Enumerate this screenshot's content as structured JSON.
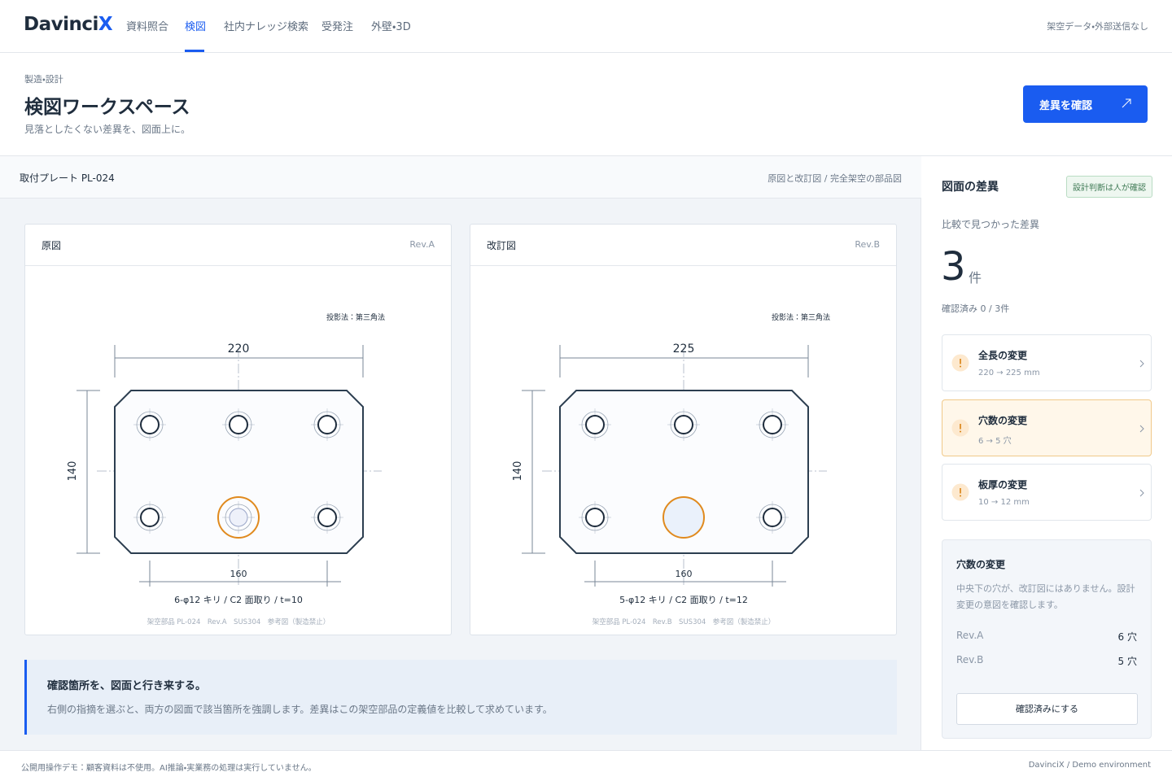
{
  "header": {
    "logo": "Davinci",
    "logo_accent": "X",
    "nav": [
      "資料照合",
      "検図",
      "社内ナレッジ検索",
      "受発注",
      "外壁・3D"
    ],
    "notice": "架空データ・外部送信なし"
  },
  "page": {
    "breadcrumb": "製造・設計",
    "title": "検図ワークスペース",
    "subtitle": "見落としたくない差異を、図面上に。",
    "action": "差異を確認"
  },
  "workspace": {
    "part": "取付プレート PL-024",
    "note": "原図と改訂図 / 完全架空の部品図",
    "drawings": [
      {
        "label": "原図",
        "rev": "Rev.A",
        "projection": "投影法：第三角法",
        "width": 220,
        "height": 140,
        "pitch": 160,
        "spec": "6-φ12 キリ / C2 面取り / t=10",
        "footer": "架空部品 PL-024　Rev.A　SUS304　参考図（製造禁止）"
      },
      {
        "label": "改訂図",
        "rev": "Rev.B",
        "projection": "投影法：第三角法",
        "width": 225,
        "height": 140,
        "pitch": 160,
        "spec": "5-φ12 キリ / C2 面取り / t=12",
        "footer": "架空部品 PL-024　Rev.B　SUS304　参考図（製造禁止）"
      }
    ],
    "hint": {
      "title": "確認箇所を、図面と行き来する。",
      "text": "右側の指摘を選ぶと、両方の図面で該当箇所を強調します。差異はこの架空部品の定義値を比較して求めています。"
    }
  },
  "panel": {
    "title": "図面の差異",
    "badge": "設計判断は人が確認",
    "found_label": "比較で見つかった差異",
    "count": 3,
    "count_unit": "件",
    "progress": "確認済み 0 / 3件",
    "diffs": [
      {
        "title": "全長の変更",
        "detail": "220 → 225 mm"
      },
      {
        "title": "穴数の変更",
        "detail": "6 → 5 穴"
      },
      {
        "title": "板厚の変更",
        "detail": "10 → 12 mm"
      }
    ],
    "detail": {
      "title": "穴数の変更",
      "text": "中央下の穴が、改訂図にはありません。設計変更の意図を確認します。",
      "rows": [
        {
          "label": "Rev.A",
          "value": "6 穴"
        },
        {
          "label": "Rev.B",
          "value": "5 穴"
        }
      ],
      "button": "確認済みにする"
    }
  },
  "footer": {
    "left": "公開用操作デモ：顧客資料は不使用。AI推論・実業務の処理は実行していません。",
    "right": "DavinciX / Demo environment"
  }
}
